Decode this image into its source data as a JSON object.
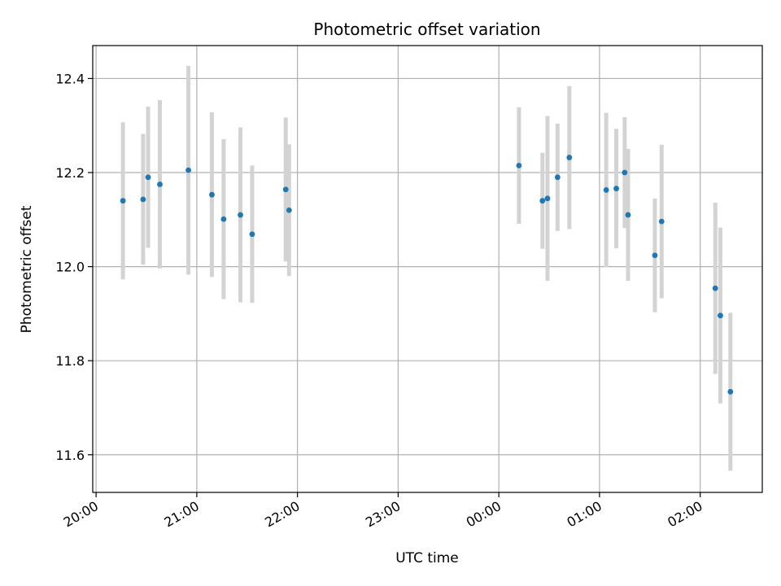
{
  "chart_data": {
    "type": "scatter",
    "title": "Photometric offset variation",
    "xlabel": "UTC time",
    "ylabel": "Photometric offset",
    "x_axis": {
      "kind": "time",
      "range": [
        "19:58",
        "02:37"
      ],
      "ticks": [
        "20:00",
        "21:00",
        "22:00",
        "23:00",
        "00:00",
        "01:00",
        "02:00"
      ],
      "tick_label_rotation": "30 degrees"
    },
    "ylim": [
      11.52,
      12.47
    ],
    "y_ticks": [
      "11.6",
      "11.8",
      "12.0",
      "12.2",
      "12.4"
    ],
    "grid": true,
    "colors": {
      "marker": "#1f77b4",
      "errorbar": "#d3d3d3",
      "grid": "#b0b0b0"
    },
    "series": [
      {
        "points": [
          {
            "time": "20:16",
            "y": 12.14,
            "yerr": 0.167
          },
          {
            "time": "20:28",
            "y": 12.143,
            "yerr": 0.139
          },
          {
            "time": "20:31",
            "y": 12.19,
            "yerr": 0.15
          },
          {
            "time": "20:38",
            "y": 12.175,
            "yerr": 0.179
          },
          {
            "time": "20:55",
            "y": 12.205,
            "yerr": 0.222
          },
          {
            "time": "21:09",
            "y": 12.153,
            "yerr": 0.175
          },
          {
            "time": "21:16",
            "y": 12.101,
            "yerr": 0.17
          },
          {
            "time": "21:26",
            "y": 12.11,
            "yerr": 0.186
          },
          {
            "time": "21:33",
            "y": 12.069,
            "yerr": 0.146
          },
          {
            "time": "21:53",
            "y": 12.164,
            "yerr": 0.153
          },
          {
            "time": "21:55",
            "y": 12.12,
            "yerr": 0.14
          },
          {
            "time": "00:12",
            "y": 12.215,
            "yerr": 0.124
          },
          {
            "time": "00:26",
            "y": 12.14,
            "yerr": 0.102
          },
          {
            "time": "00:29",
            "y": 12.145,
            "yerr": 0.175
          },
          {
            "time": "00:35",
            "y": 12.19,
            "yerr": 0.114
          },
          {
            "time": "00:42",
            "y": 12.232,
            "yerr": 0.152
          },
          {
            "time": "01:04",
            "y": 12.163,
            "yerr": 0.164
          },
          {
            "time": "01:10",
            "y": 12.166,
            "yerr": 0.127
          },
          {
            "time": "01:15",
            "y": 12.2,
            "yerr": 0.118
          },
          {
            "time": "01:17",
            "y": 12.11,
            "yerr": 0.14
          },
          {
            "time": "01:33",
            "y": 12.024,
            "yerr": 0.121
          },
          {
            "time": "01:37",
            "y": 12.096,
            "yerr": 0.163
          },
          {
            "time": "02:09",
            "y": 11.954,
            "yerr": 0.182
          },
          {
            "time": "02:12",
            "y": 11.896,
            "yerr": 0.187
          },
          {
            "time": "02:18",
            "y": 11.734,
            "yerr": 0.168
          }
        ]
      }
    ]
  }
}
